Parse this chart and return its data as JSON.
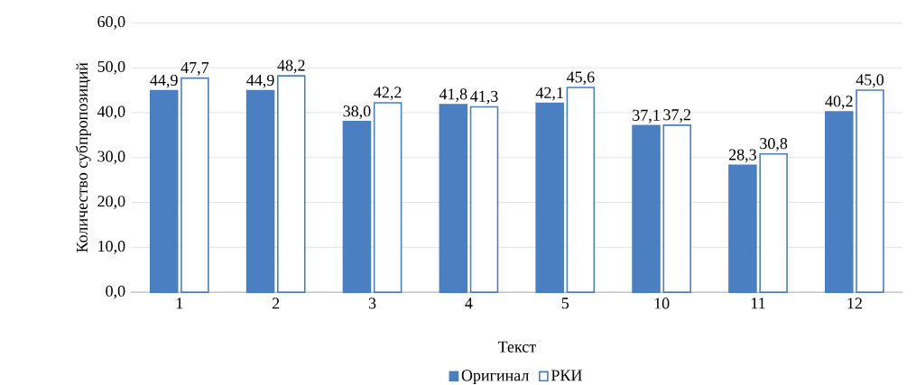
{
  "chart_data": {
    "type": "bar",
    "xlabel": "Текст",
    "ylabel": "Количество субпропозиций",
    "categories": [
      "1",
      "2",
      "3",
      "4",
      "5",
      "10",
      "11",
      "12"
    ],
    "series": [
      {
        "name": "Оригинал",
        "color": "#4a7fc1",
        "values": [
          44.9,
          44.9,
          38.0,
          41.8,
          42.1,
          37.1,
          28.3,
          40.2
        ],
        "value_labels": [
          "44,9",
          "44,9",
          "38,0",
          "41,8",
          "42,1",
          "37,1",
          "28,3",
          "40,2"
        ]
      },
      {
        "name": "РКИ",
        "color": "#4a7fc1",
        "values": [
          47.7,
          48.2,
          42.2,
          41.3,
          45.6,
          37.2,
          30.8,
          45.0
        ],
        "value_labels": [
          "47,7",
          "48,2",
          "42,2",
          "41,3",
          "45,6",
          "37,2",
          "30,8",
          "45,0"
        ]
      }
    ],
    "ylim": [
      0,
      60
    ],
    "yticks": [
      {
        "value": 0,
        "label": "0,0"
      },
      {
        "value": 10,
        "label": "10,0"
      },
      {
        "value": 20,
        "label": "20,0"
      },
      {
        "value": 30,
        "label": "30,0"
      },
      {
        "value": 40,
        "label": "40,0"
      },
      {
        "value": 50,
        "label": "50,0"
      },
      {
        "value": 60,
        "label": "60,0"
      }
    ],
    "grid": "y",
    "legend": "bottom"
  }
}
